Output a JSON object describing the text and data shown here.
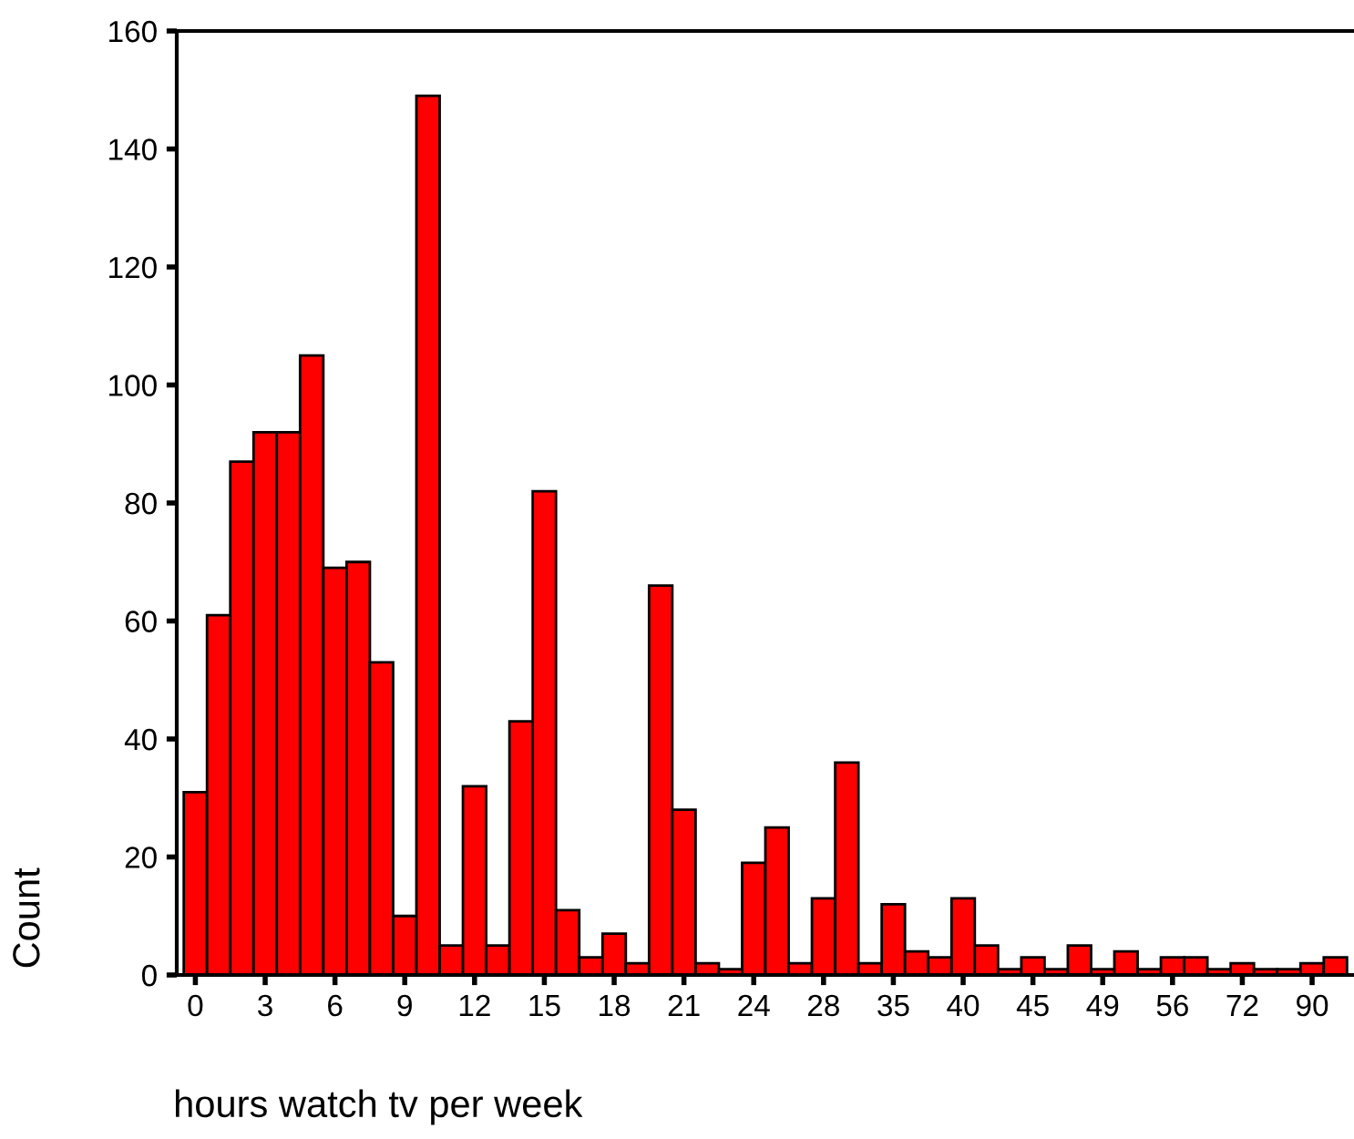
{
  "chart_data": {
    "type": "bar",
    "xlabel": "hours watch tv per week",
    "ylabel": "Count",
    "categories": [
      "0",
      null,
      null,
      "3",
      null,
      null,
      "6",
      null,
      null,
      "9",
      null,
      null,
      "12",
      null,
      null,
      "15",
      null,
      null,
      "18",
      null,
      null,
      "21",
      null,
      null,
      "24",
      null,
      null,
      "28",
      null,
      null,
      "35",
      null,
      null,
      "40",
      null,
      null,
      "45",
      null,
      null,
      "49",
      null,
      null,
      "56",
      null,
      null,
      "72",
      null,
      null,
      "90",
      null
    ],
    "values": [
      31,
      61,
      87,
      92,
      92,
      105,
      69,
      70,
      53,
      10,
      149,
      5,
      32,
      5,
      43,
      82,
      11,
      3,
      7,
      2,
      66,
      28,
      2,
      1,
      19,
      25,
      2,
      13,
      36,
      2,
      12,
      4,
      3,
      13,
      5,
      1,
      3,
      1,
      5,
      1,
      4,
      1,
      3,
      3,
      1,
      2,
      1,
      1,
      2,
      3
    ],
    "color": "#ff0000",
    "ylim": [
      0,
      160
    ],
    "yticks": [
      0,
      20,
      40,
      60,
      80,
      100,
      120,
      140,
      160
    ],
    "grid": false,
    "legend": false
  }
}
